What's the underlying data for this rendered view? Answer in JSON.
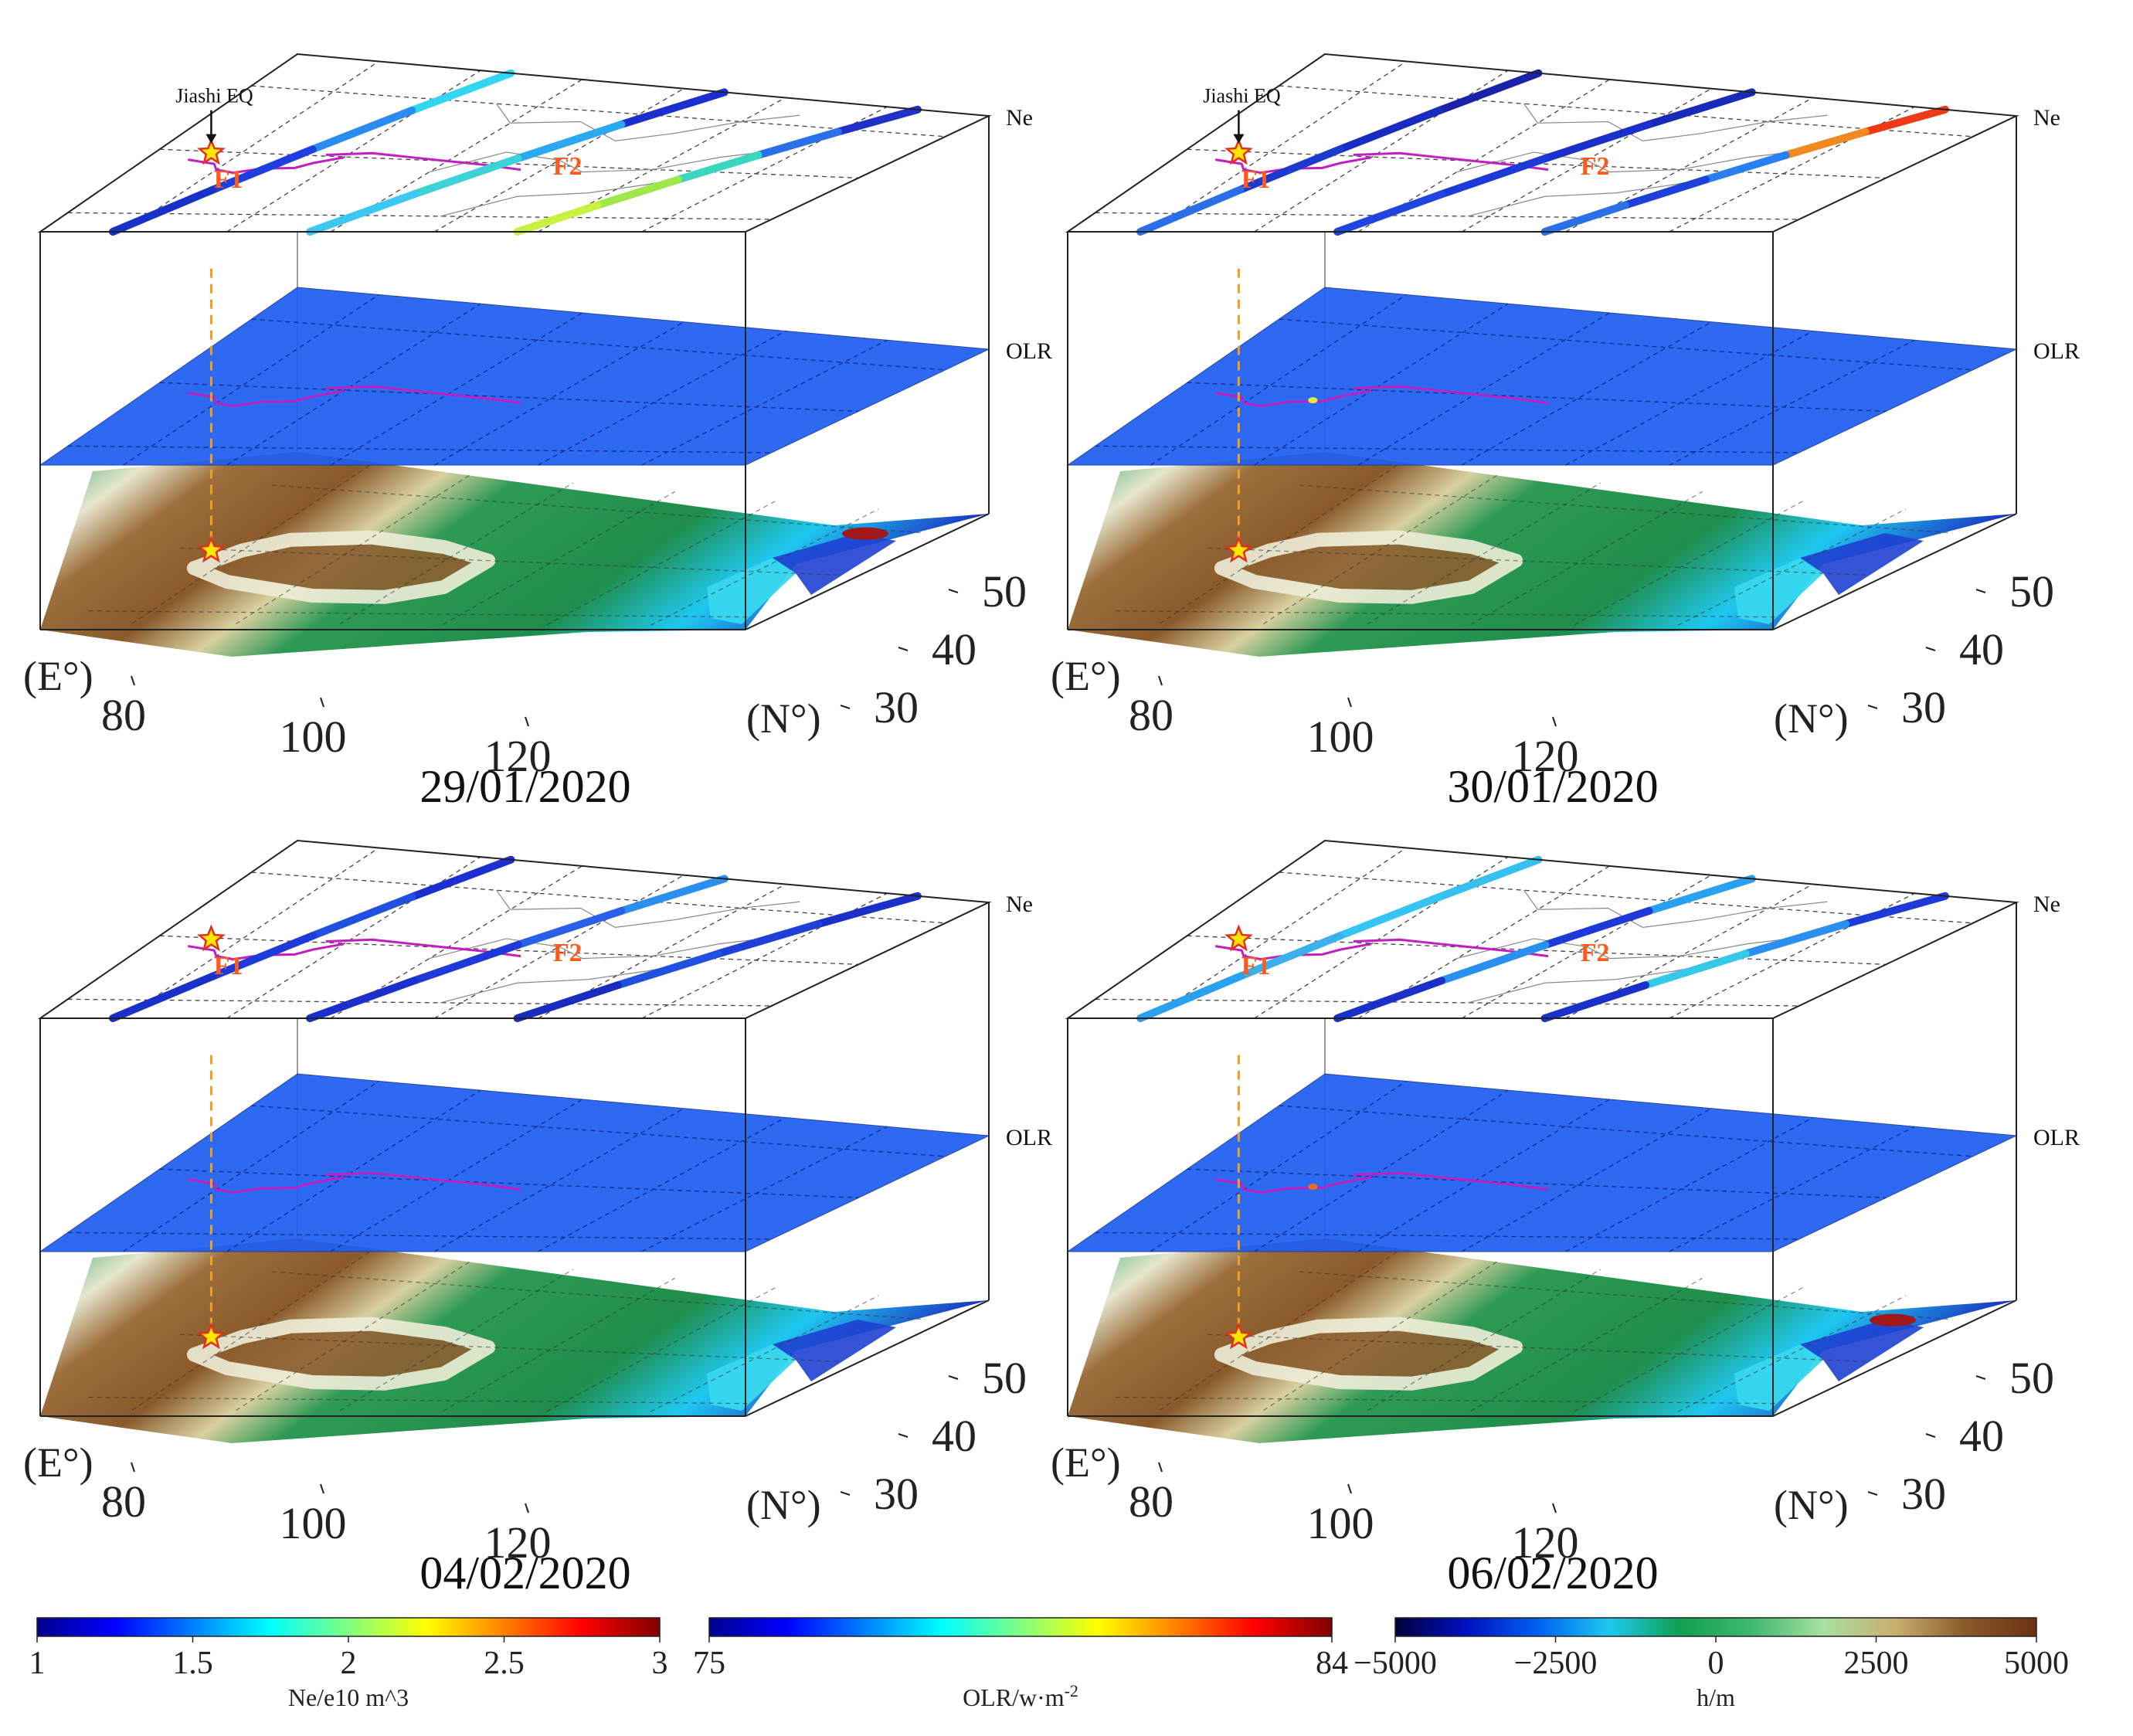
{
  "figure": {
    "type": "3d-layered-map",
    "subject": "Jiashi earthquake ionospheric / OLR / terrain comparison"
  },
  "layer_labels": {
    "ne": "Ne",
    "olr": "OLR"
  },
  "annotations": {
    "epicenter": "Jiashi EQ",
    "fault1": "F1",
    "fault2": "F2"
  },
  "axes": {
    "lon_unit": "(E°)",
    "lat_unit": "(N°)",
    "lon_ticks": [
      "80",
      "100",
      "120"
    ],
    "lat_ticks": [
      "50",
      "40",
      "30"
    ]
  },
  "panels": [
    {
      "id": "p1",
      "date": "29/01/2020",
      "show_eq_label": true,
      "tracks": [
        {
          "colors": [
            "#33d6f2",
            "#2a8cf0",
            "#1d3fe0",
            "#1832c9"
          ]
        },
        {
          "colors": [
            "#1b2fcf",
            "#2aa8f0",
            "#3cd2d8",
            "#3cc8f2"
          ]
        },
        {
          "colors": [
            "#2030c8",
            "#2a70e8",
            "#3cd6c0",
            "#9ee84a",
            "#c8f040"
          ]
        }
      ],
      "olr_spots": [],
      "terrain_spots": [
        {
          "lon": 133,
          "lat": 49,
          "color": "#a01818"
        }
      ]
    },
    {
      "id": "p2",
      "date": "30/01/2020",
      "show_eq_label": true,
      "tracks": [
        {
          "colors": [
            "#1a22a8",
            "#1a2cc0",
            "#1d3ad0",
            "#2a6ee8"
          ]
        },
        {
          "colors": [
            "#1a2ab8",
            "#1a30c8",
            "#1d3ad8",
            "#1f44e0"
          ]
        },
        {
          "colors": [
            "#ee3a18",
            "#f08a20",
            "#2a80f0",
            "#1e40d8",
            "#2a70e8"
          ]
        }
      ],
      "olr_spots": [
        {
          "lon": 86,
          "lat": 38,
          "color": "#e8e840"
        }
      ],
      "terrain_spots": []
    },
    {
      "id": "p3",
      "date": "04/02/2020",
      "show_eq_label": false,
      "tracks": [
        {
          "colors": [
            "#1d2fd0",
            "#2050e0",
            "#1e3ad8",
            "#1a30c8"
          ]
        },
        {
          "colors": [
            "#2a90f0",
            "#2a60e8",
            "#1d3ad8",
            "#1a30c8"
          ]
        },
        {
          "colors": [
            "#1a30c8",
            "#1e40d8",
            "#2050e0",
            "#1a2cc0"
          ]
        }
      ],
      "olr_spots": [],
      "terrain_spots": []
    },
    {
      "id": "p4",
      "date": "06/02/2020",
      "show_eq_label": false,
      "tracks": [
        {
          "colors": [
            "#36c0f0",
            "#38c4f2",
            "#3ab0ee",
            "#2aa0f0"
          ]
        },
        {
          "colors": [
            "#2aa0f0",
            "#1d3ad8",
            "#2a90f0",
            "#1a30c8"
          ]
        },
        {
          "colors": [
            "#1d3ad8",
            "#2a90f0",
            "#36c8e8",
            "#1a30c8"
          ]
        }
      ],
      "olr_spots": [
        {
          "lon": 86,
          "lat": 38,
          "color": "#e07028"
        }
      ],
      "terrain_spots": [
        {
          "lon": 133,
          "lat": 49,
          "color": "#a01818"
        }
      ]
    }
  ],
  "colorbars": [
    {
      "id": "ne",
      "label": "Ne/e10 m^3",
      "ticks": [
        "1",
        "1.5",
        "2",
        "2.5",
        "3"
      ],
      "min": 1,
      "max": 3,
      "colors": [
        "#00008f",
        "#0000ff",
        "#0080ff",
        "#00ffff",
        "#80ff80",
        "#ffff00",
        "#ff8000",
        "#ff0000",
        "#800000"
      ]
    },
    {
      "id": "olr",
      "label": "OLR/w·m",
      "label_sup": "-2",
      "ticks": [
        "75",
        "84"
      ],
      "min": 75,
      "max": 84,
      "colors": [
        "#00008f",
        "#0000ff",
        "#0080ff",
        "#00ffff",
        "#80ff80",
        "#ffff00",
        "#ff8000",
        "#ff0000",
        "#800000"
      ]
    },
    {
      "id": "h",
      "label": "h/m",
      "ticks": [
        "−5000",
        "−2500",
        "0",
        "2500",
        "5000"
      ],
      "min": -5000,
      "max": 5000,
      "colors": [
        "#00003a",
        "#0010c0",
        "#0060f0",
        "#1fc8f0",
        "#10a050",
        "#40b870",
        "#a8e0a0",
        "#c8b070",
        "#8a5a2a",
        "#6a3010"
      ]
    }
  ]
}
